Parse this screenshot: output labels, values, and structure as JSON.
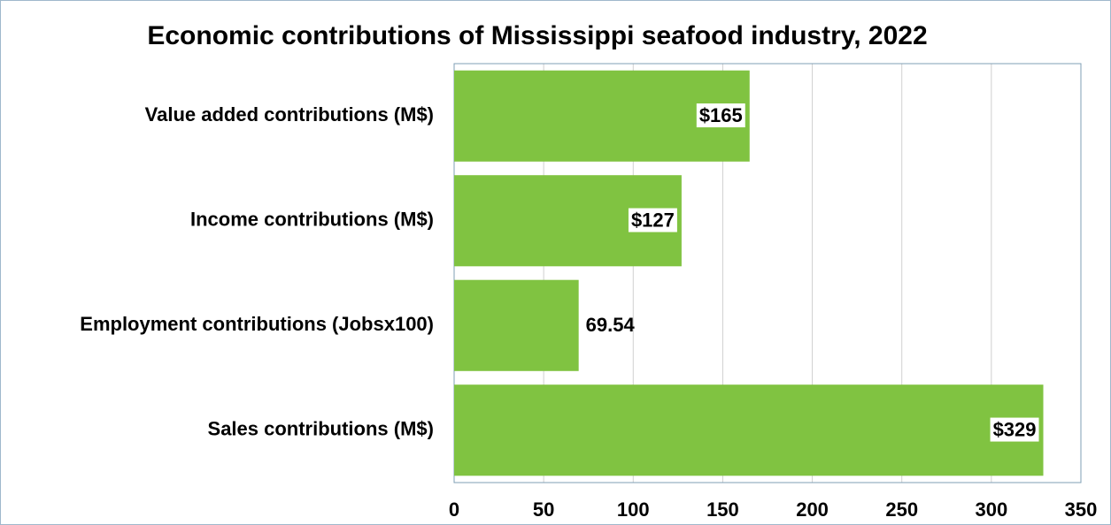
{
  "chart_data": {
    "type": "bar",
    "orientation": "horizontal",
    "title": "Economic contributions of Mississippi seafood industry, 2022",
    "categories": [
      "Value added contributions (M$)",
      "Income contributions (M$)",
      "Employment contributions (Jobsx100)",
      "Sales contributions (M$)"
    ],
    "values": [
      165,
      127,
      69.54,
      329
    ],
    "value_labels": [
      "$165",
      "$127",
      "69.54",
      "$329"
    ],
    "color": "#80c341",
    "xlim": [
      0,
      350
    ],
    "xticks": [
      0,
      50,
      100,
      150,
      200,
      250,
      300,
      350
    ],
    "grid": true
  }
}
